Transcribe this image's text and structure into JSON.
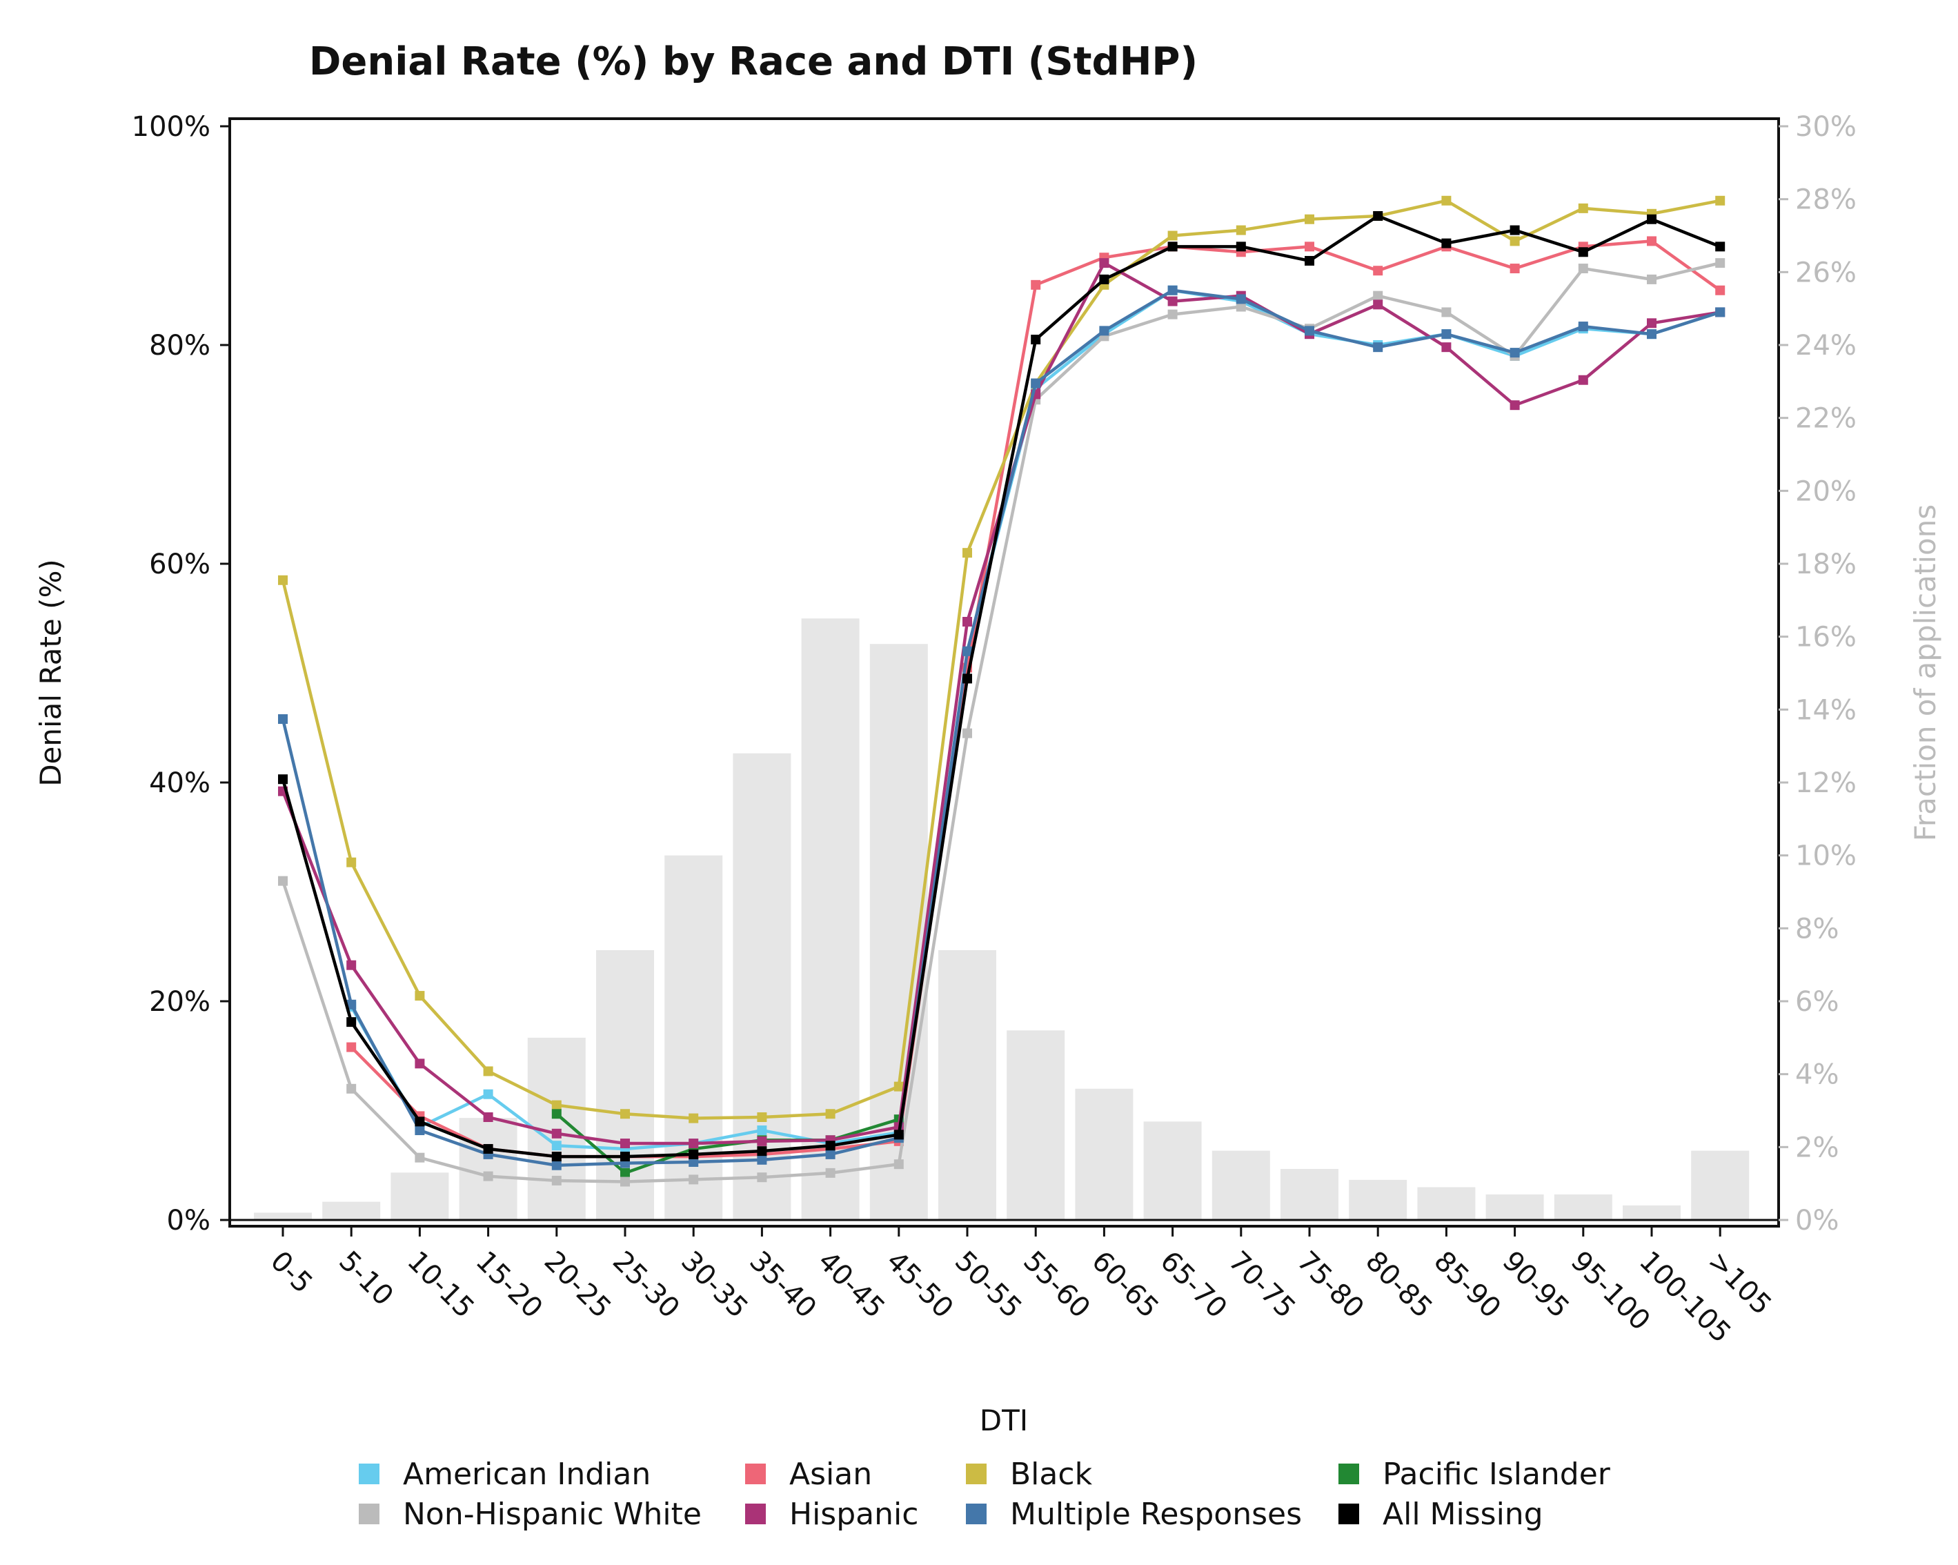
{
  "chart_data": {
    "type": "line",
    "title": "Denial Rate (%) by Race and DTI (StdHP)",
    "xlabel": "DTI",
    "ylabel": "Denial Rate (%)",
    "y2label": "Fraction of applications",
    "ylim": [
      0,
      100
    ],
    "y2lim": [
      0,
      30
    ],
    "yticks": [
      "0%",
      "20%",
      "40%",
      "60%",
      "80%",
      "100%"
    ],
    "y2ticks": [
      "0%",
      "2%",
      "4%",
      "6%",
      "8%",
      "10%",
      "12%",
      "14%",
      "16%",
      "18%",
      "20%",
      "22%",
      "24%",
      "26%",
      "28%",
      "30%"
    ],
    "categories": [
      "0-5",
      "5-10",
      "10-15",
      "15-20",
      "20-25",
      "25-30",
      "30-35",
      "35-40",
      "40-45",
      "45-50",
      "50-55",
      "55-60",
      "60-65",
      "65-70",
      "70-75",
      "75-80",
      "80-85",
      "85-90",
      "90-95",
      "95-100",
      "100-105",
      ">105"
    ],
    "bars": {
      "name": "Fraction of applications",
      "color": "#e6e6e6",
      "values": [
        0.2,
        0.5,
        1.3,
        2.8,
        5.0,
        7.4,
        10.0,
        12.8,
        16.5,
        15.8,
        7.4,
        5.2,
        3.6,
        2.7,
        1.9,
        1.4,
        1.1,
        0.9,
        0.7,
        0.7,
        0.4,
        1.9
      ]
    },
    "series": [
      {
        "name": "American Indian",
        "color": "#66ccee",
        "values": [
          null,
          19.5,
          8.5,
          11.5,
          6.8,
          6.5,
          7.0,
          8.2,
          7.0,
          8.0,
          52.0,
          76.0,
          81.0,
          85.0,
          84.0,
          81.0,
          80.0,
          81.0,
          79.0,
          81.5,
          81.0,
          83.0
        ]
      },
      {
        "name": "Asian",
        "color": "#ee6677",
        "values": [
          null,
          15.8,
          9.5,
          6.5,
          5.8,
          5.8,
          5.8,
          6.0,
          6.5,
          7.2,
          50.5,
          85.5,
          88.0,
          89.0,
          88.5,
          89.0,
          86.8,
          89.0,
          87.0,
          89.0,
          89.5,
          85.0
        ]
      },
      {
        "name": "Black",
        "color": "#ccbb44",
        "values": [
          58.5,
          32.7,
          20.5,
          13.6,
          10.5,
          9.7,
          9.3,
          9.4,
          9.7,
          12.2,
          61.0,
          76.5,
          85.5,
          90.0,
          90.5,
          91.5,
          91.8,
          93.2,
          89.5,
          92.5,
          92.0,
          93.2
        ]
      },
      {
        "name": "Pacific Islander",
        "color": "#228833",
        "values": [
          null,
          null,
          null,
          null,
          9.7,
          4.3,
          6.5,
          7.3,
          7.3,
          9.2,
          null,
          null,
          null,
          null,
          null,
          null,
          null,
          null,
          null,
          null,
          null,
          null
        ]
      },
      {
        "name": "Non-Hispanic White",
        "color": "#bbbbbb",
        "values": [
          31.0,
          12.0,
          5.7,
          4.0,
          3.6,
          3.5,
          3.7,
          3.9,
          4.3,
          5.1,
          44.5,
          75.0,
          80.8,
          82.8,
          83.5,
          81.5,
          84.5,
          83.0,
          79.0,
          87.0,
          86.0,
          87.5
        ]
      },
      {
        "name": "Hispanic",
        "color": "#aa3377",
        "values": [
          39.2,
          23.3,
          14.3,
          9.4,
          7.9,
          7.0,
          7.0,
          7.2,
          7.3,
          8.5,
          54.7,
          75.5,
          87.5,
          84.0,
          84.5,
          81.0,
          83.7,
          79.8,
          74.5,
          76.8,
          82.0,
          83.0
        ]
      },
      {
        "name": "Multiple Responses",
        "color": "#4477aa",
        "values": [
          45.8,
          19.7,
          8.2,
          6.0,
          5.0,
          5.2,
          5.3,
          5.5,
          6.0,
          7.5,
          52.0,
          76.5,
          81.3,
          85.0,
          84.2,
          81.3,
          79.8,
          81.0,
          79.3,
          81.7,
          81.0,
          83.0
        ]
      },
      {
        "name": "All Missing",
        "color": "#000000",
        "values": [
          40.3,
          18.1,
          9.0,
          6.5,
          5.8,
          5.8,
          6.0,
          6.3,
          6.8,
          7.8,
          49.5,
          80.5,
          86.0,
          89.0,
          89.0,
          87.7,
          91.8,
          89.3,
          90.5,
          88.5,
          91.5,
          89.0
        ]
      }
    ]
  }
}
